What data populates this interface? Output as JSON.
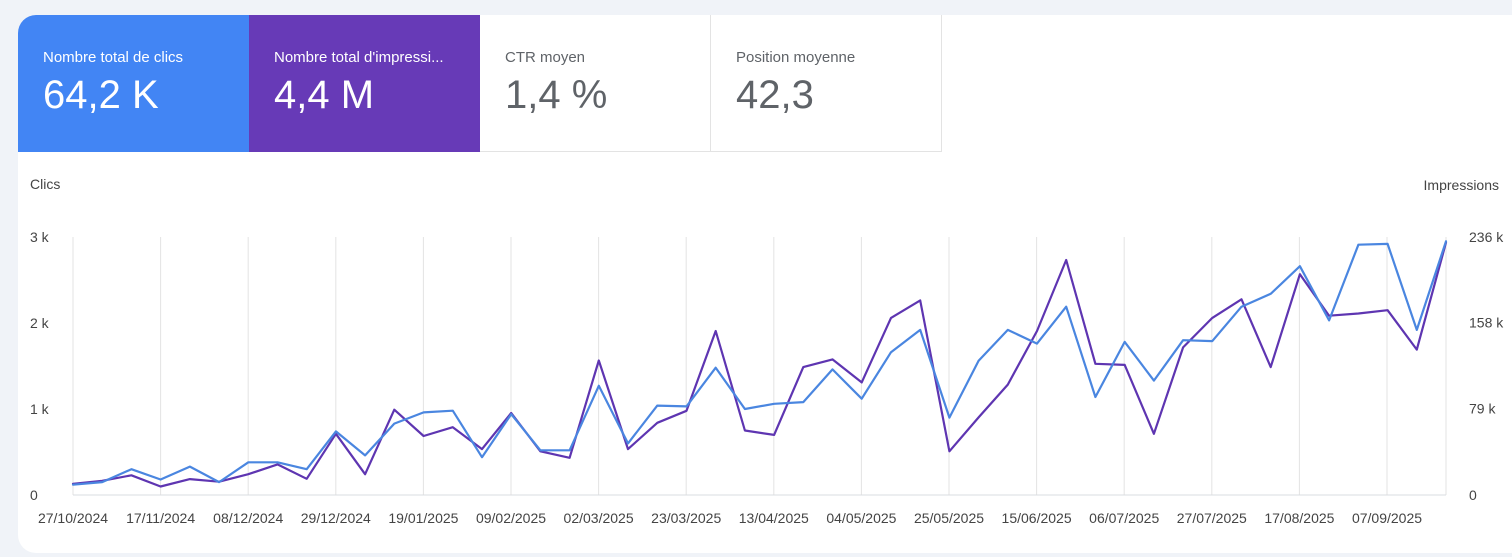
{
  "metrics": [
    {
      "label": "Nombre total de clics",
      "value": "64,2 K",
      "color": "#4285f4"
    },
    {
      "label": "Nombre total d'impressi...",
      "value": "4,4 M",
      "color": "#673ab7"
    },
    {
      "label": "CTR moyen",
      "value": "1,4 %"
    },
    {
      "label": "Position moyenne",
      "value": "42,3"
    }
  ],
  "chart_data": {
    "type": "line",
    "left_axis_title": "Clics",
    "right_axis_title": "Impressions",
    "left_ticks": [
      "0",
      "1 k",
      "2 k",
      "3 k"
    ],
    "right_ticks": [
      "0",
      "79 k",
      "158 k",
      "236 k"
    ],
    "left_ylim": [
      0,
      3000
    ],
    "right_ylim": [
      0,
      236000
    ],
    "grid": "vertical",
    "x_tick_labels": [
      "27/10/2024",
      "17/11/2024",
      "08/12/2024",
      "29/12/2024",
      "19/01/2025",
      "09/02/2025",
      "02/03/2025",
      "23/03/2025",
      "13/04/2025",
      "04/05/2025",
      "25/05/2025",
      "15/06/2025",
      "06/07/2025",
      "27/07/2025",
      "17/08/2025",
      "07/09/2025"
    ],
    "series": [
      {
        "name": "Clics",
        "axis": "left",
        "color": "#4a86e0",
        "values": [
          120,
          150,
          300,
          180,
          330,
          150,
          380,
          380,
          300,
          740,
          460,
          830,
          960,
          980,
          440,
          940,
          520,
          520,
          1270,
          600,
          1040,
          1030,
          1480,
          1000,
          1060,
          1080,
          1460,
          1120,
          1660,
          1920,
          900,
          1560,
          1920,
          1760,
          2190,
          1140,
          1780,
          1330,
          1800,
          1790,
          2190,
          2340,
          2660,
          2030,
          2910,
          2920,
          1920,
          2950
        ]
      },
      {
        "name": "Impressions",
        "axis": "right",
        "color": "#5e35b1",
        "values": [
          10200,
          13000,
          18000,
          7800,
          14500,
          12200,
          19000,
          28000,
          14800,
          56000,
          19000,
          78000,
          54000,
          62000,
          42000,
          75000,
          40000,
          34000,
          123000,
          42000,
          66000,
          77000,
          150000,
          59000,
          55000,
          117000,
          124000,
          103000,
          162000,
          178000,
          40000,
          71000,
          101000,
          150000,
          215000,
          120000,
          119000,
          56000,
          135000,
          162000,
          179000,
          117000,
          202000,
          164000,
          166000,
          169000,
          133000,
          231000
        ]
      }
    ]
  }
}
